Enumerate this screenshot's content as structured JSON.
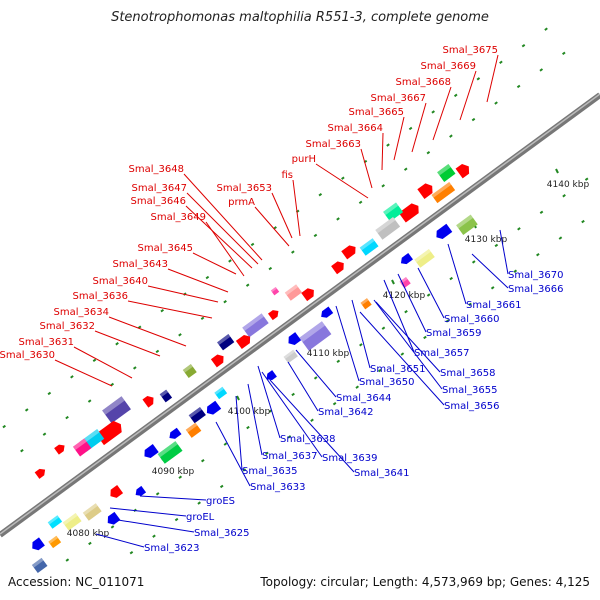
{
  "title": "Stenotrophomonas maltophilia R551-3, complete genome",
  "accession": "Accession: NC_011071",
  "topology": "Topology: circular; Length: 4,573,969 bp; Genes: 4,125",
  "scale_ticks": [
    "4080 kbp",
    "4090 kbp",
    "4100 kbp",
    "4110 kbp",
    "4120 kbp",
    "4130 kbp",
    "4140 kbp"
  ],
  "genes_top": [
    "Smal_3675",
    "Smal_3669",
    "Smal_3668",
    "Smal_3667",
    "Smal_3665",
    "Smal_3664",
    "Smal_3663",
    "purH",
    "fis",
    "Smal_3653",
    "prmA",
    "Smal_3648",
    "Smal_3647",
    "Smal_3646",
    "Smal_3649",
    "Smal_3645",
    "Smal_3643",
    "Smal_3640",
    "Smal_3636",
    "Smal_3634",
    "Smal_3632",
    "Smal_3631",
    "Smal_3630"
  ],
  "genes_bottom": [
    "Smal_3670",
    "Smal_3666",
    "Smal_3661",
    "Smal_3660",
    "Smal_3659",
    "Smal_3657",
    "Smal_3658",
    "Smal_3651",
    "Smal_3650",
    "Smal_3655",
    "Smal_3656",
    "Smal_3644",
    "Smal_3642",
    "Smal_3638",
    "Smal_3639",
    "Smal_3637",
    "Smal_3641",
    "Smal_3635",
    "Smal_3633",
    "groES",
    "groEL",
    "Smal_3625",
    "Smal_3623"
  ],
  "colors": {
    "top_label": "#dd0000",
    "bottom_label": "#0000cc",
    "forward_gene": "#ee0000",
    "reverse_gene": "#0000ee",
    "backbone": "#888888",
    "tick": "#228822"
  }
}
